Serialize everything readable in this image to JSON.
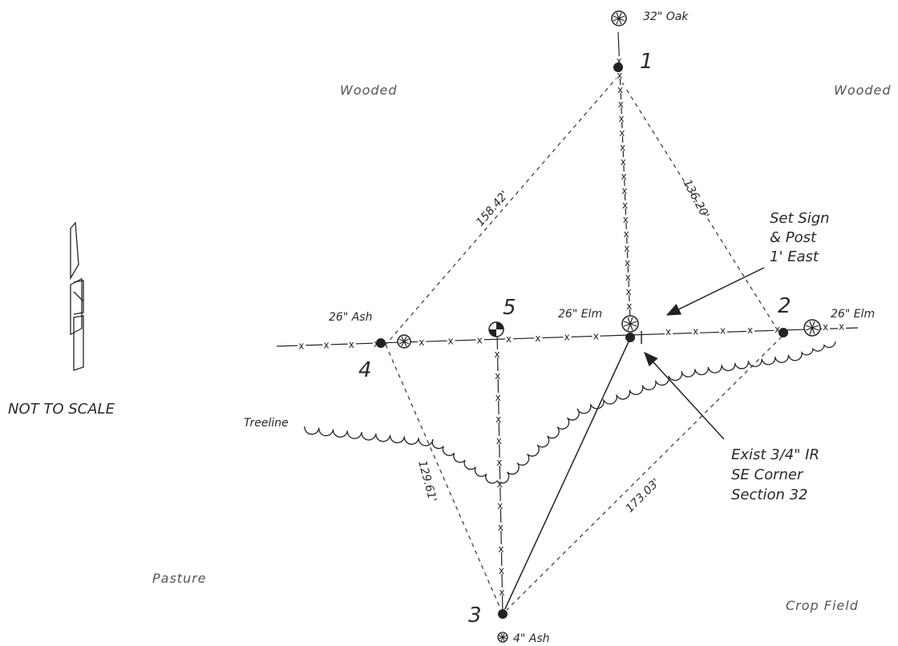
{
  "points": [
    {
      "id": "1",
      "label": "1"
    },
    {
      "id": "2",
      "label": "2"
    },
    {
      "id": "3",
      "label": "3"
    },
    {
      "id": "4",
      "label": "4"
    },
    {
      "id": "5",
      "label": "5"
    }
  ],
  "trees": {
    "oak": "32\" Oak",
    "elm_center": "26\" Elm",
    "elm_right": "26\" Elm",
    "ash_left": "26\" Ash",
    "ash_bottom": "4\" Ash"
  },
  "distances": {
    "d_1_4": "158.42'",
    "d_1_2": "136.20'",
    "d_4_3": "129.61'",
    "d_2_3": "173.03'"
  },
  "areas": {
    "wooded_left": "Wooded",
    "wooded_right": "Wooded",
    "pasture": "Pasture",
    "crop": "Crop Field",
    "treeline": "Treeline"
  },
  "annotations": {
    "sign_line1": "Set Sign",
    "sign_line2": "& Post",
    "sign_line3": "1' East",
    "ir_line1": "Exist 3/4\" IR",
    "ir_line2": "SE Corner",
    "ir_line3": "Section 32"
  },
  "scale_note": "NOT TO SCALE",
  "north_arrow_letters": "N"
}
